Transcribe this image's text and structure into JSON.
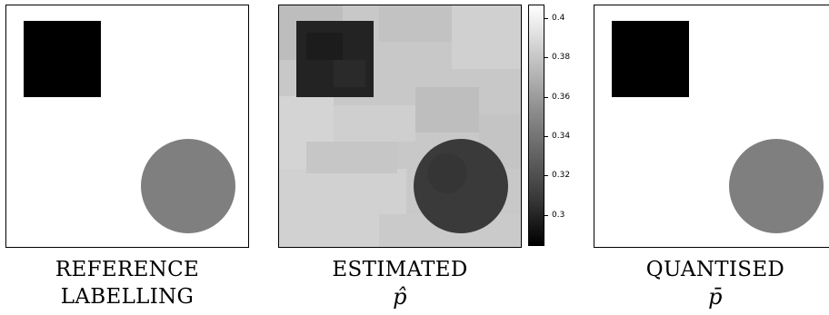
{
  "captions": {
    "reference_line1": "REFERENCE",
    "reference_line2": "LABELLING",
    "estimated_line1": "ESTIMATED",
    "estimated_symbol": "p̂",
    "quantised_line1": "QUANTISED",
    "quantised_symbol": "p̄"
  },
  "colorbar": {
    "ticks": [
      "0.4",
      "0.38",
      "0.36",
      "0.34",
      "0.32",
      "0.3"
    ]
  },
  "colors": {
    "square": "#000000",
    "circle_reference": "#7f7f7f",
    "estimated_background": "#c9c9c9",
    "estimated_square": "#222222",
    "estimated_circle": "#3a3a3a"
  }
}
